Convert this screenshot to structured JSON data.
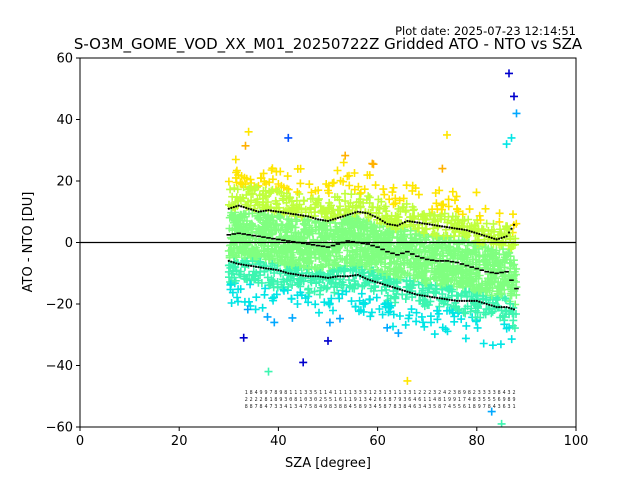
{
  "chart_data": {
    "type": "scatter",
    "title": "S-O3M_GOME_VOD_XX_M01_20250722Z Gridded ATO - NTO vs SZA",
    "plot_date": "Plot date: 2025-07-23 12:14:51",
    "xlabel": "SZA [degree]",
    "ylabel": "ATO - NTO [DU]",
    "xlim": [
      0,
      100
    ],
    "ylim": [
      -60,
      60
    ],
    "xticks": [
      0,
      20,
      40,
      60,
      80,
      100
    ],
    "yticks": [
      -60,
      -40,
      -20,
      0,
      20,
      40,
      60
    ],
    "grid": false,
    "legend": "none",
    "marker": "+",
    "colormap": "jet",
    "colors": [
      "#0000cd",
      "#0050ff",
      "#00a8ff",
      "#00e5e5",
      "#3cf5b0",
      "#80ff80",
      "#c0ff3c",
      "#ffe600",
      "#ffb000"
    ],
    "point_cloud": {
      "sza_range": [
        30,
        88
      ],
      "typical_spread": [
        -35,
        32
      ],
      "extremes": [
        {
          "x": 86.5,
          "y": 55,
          "color": "#0000cd"
        },
        {
          "x": 87.5,
          "y": 47.5,
          "color": "#0000cd"
        },
        {
          "x": 88,
          "y": 42,
          "color": "#00a8ff"
        },
        {
          "x": 87,
          "y": 34,
          "color": "#00e5e5"
        },
        {
          "x": 86,
          "y": 32,
          "color": "#00e5e5"
        },
        {
          "x": 33,
          "y": -31,
          "color": "#0000cd"
        },
        {
          "x": 38,
          "y": -42,
          "color": "#3cf5b0"
        },
        {
          "x": 45,
          "y": -39,
          "color": "#0000cd"
        },
        {
          "x": 50,
          "y": -32,
          "color": "#0000cd"
        },
        {
          "x": 66,
          "y": -45,
          "color": "#ffe600"
        },
        {
          "x": 85,
          "y": -59,
          "color": "#3cf5b0"
        },
        {
          "x": 83,
          "y": -55,
          "color": "#00a8ff"
        },
        {
          "x": 42,
          "y": 34,
          "color": "#0050ff"
        },
        {
          "x": 34,
          "y": 36,
          "color": "#ffe600"
        },
        {
          "x": 74,
          "y": 35,
          "color": "#ffe600"
        }
      ]
    },
    "mean_curve": {
      "x": [
        30,
        32,
        34,
        36,
        38,
        40,
        42,
        44,
        46,
        48,
        50,
        52,
        54,
        56,
        58,
        60,
        62,
        64,
        66,
        68,
        70,
        72,
        74,
        76,
        78,
        80,
        82,
        84,
        86,
        88
      ],
      "y": [
        2.5,
        3,
        2.5,
        2,
        1.5,
        1,
        0.5,
        0,
        -0.5,
        -1,
        -1.5,
        -0.5,
        0.5,
        0,
        -0.5,
        -1.5,
        -3,
        -4,
        -3,
        -4.5,
        -5.5,
        -6,
        -6,
        -6.5,
        -7.5,
        -8.5,
        -9.5,
        -10,
        -9.5,
        -15
      ]
    },
    "upper_curve": {
      "x": [
        30,
        32,
        34,
        36,
        38,
        40,
        42,
        44,
        46,
        48,
        50,
        52,
        54,
        56,
        58,
        60,
        62,
        64,
        66,
        68,
        70,
        72,
        74,
        76,
        78,
        80,
        82,
        84,
        86,
        88
      ],
      "y": [
        11,
        12,
        11,
        10,
        10.5,
        10,
        9.5,
        9,
        8.5,
        7.5,
        7,
        8,
        9,
        10,
        9.5,
        8,
        6,
        5.5,
        7,
        6.5,
        6,
        5.5,
        5,
        4.5,
        4,
        3,
        2,
        1,
        2,
        7
      ]
    },
    "lower_curve": {
      "x": [
        30,
        32,
        34,
        36,
        38,
        40,
        42,
        44,
        46,
        48,
        50,
        52,
        54,
        56,
        58,
        60,
        62,
        64,
        66,
        68,
        70,
        72,
        74,
        76,
        78,
        80,
        82,
        84,
        86,
        88
      ],
      "y": [
        -6,
        -7,
        -7.5,
        -8,
        -8.5,
        -9,
        -10,
        -10.5,
        -11,
        -11,
        -11.5,
        -11,
        -11,
        -10.5,
        -12,
        -13,
        -14,
        -15,
        -16,
        -17,
        -17.5,
        -18,
        -18.5,
        -19,
        -19,
        -19,
        -20,
        -21,
        -21,
        -22
      ]
    },
    "zero_line": 0,
    "bin_counts": {
      "x": [
        34,
        35,
        36,
        37,
        38,
        39,
        40,
        41,
        42,
        43,
        44,
        45,
        46,
        47,
        48,
        49,
        50,
        51,
        52,
        53,
        54,
        55,
        56,
        57,
        58,
        59,
        60,
        61,
        62,
        63,
        64,
        65,
        66,
        67,
        68,
        69,
        70,
        71,
        72,
        73,
        74,
        75,
        76,
        77,
        78,
        79,
        80,
        81,
        82,
        83,
        84,
        85,
        86,
        87,
        88
      ],
      "row1": [
        "1",
        "8",
        "4",
        "9",
        "9",
        "7",
        "8",
        "9",
        "8",
        "1",
        "1",
        "1",
        "3",
        "3",
        "5",
        "1",
        "1",
        "4",
        "1",
        "1",
        "1",
        "1",
        "3",
        "3",
        "3",
        "1",
        "2",
        "3",
        "1",
        "3",
        "1",
        "1",
        "3",
        "3",
        "1",
        "2",
        "2",
        "2",
        "3",
        "2",
        "4",
        "2",
        "3",
        "8",
        "9",
        "8",
        "2",
        "3",
        "3",
        "3",
        "3",
        "8",
        "4",
        "3",
        "2"
      ],
      "row2": [
        "2",
        "2",
        "2",
        "2",
        "8",
        "1",
        "8",
        "9",
        "3",
        "0",
        "8",
        "1",
        "0",
        "3",
        "0",
        "2",
        "5",
        "5",
        "1",
        "6",
        "1",
        "1",
        "9",
        "1",
        "3",
        "4",
        "2",
        "6",
        "5",
        "8",
        "7",
        "9",
        "3",
        "6",
        "4",
        "6",
        "1",
        "1",
        "4",
        "8",
        "1",
        "9",
        "9",
        "1",
        "7",
        "4",
        "8",
        "3",
        "5",
        "5",
        "5",
        "6",
        "9",
        "8",
        "9"
      ],
      "row3": [
        "8",
        "8",
        "7",
        "8",
        "4",
        "7",
        "3",
        "3",
        "4",
        "1",
        "3",
        "4",
        "7",
        "5",
        "8",
        "4",
        "9",
        "8",
        "3",
        "8",
        "8",
        "4",
        "5",
        "8",
        "9",
        "3",
        "4",
        "5",
        "8",
        "7",
        "8",
        "3",
        "8",
        "4",
        "6",
        "3",
        "4",
        "3",
        "5",
        "8",
        "7",
        "4",
        "5",
        "5",
        "6",
        "1",
        "8",
        "9",
        "7",
        "8",
        "4",
        "3",
        "6",
        "3",
        "1"
      ]
    }
  }
}
